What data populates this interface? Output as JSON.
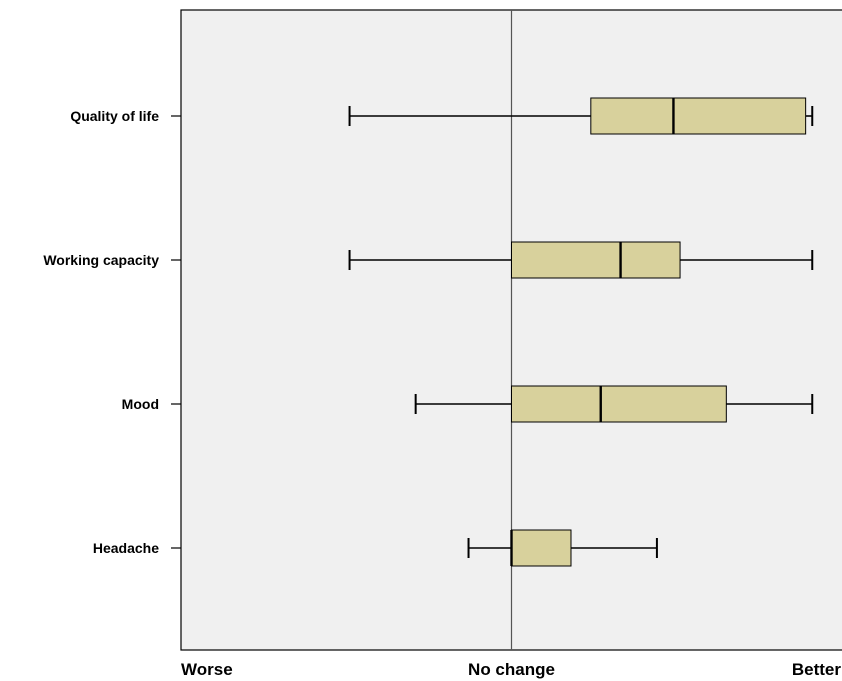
{
  "chart_data": {
    "type": "boxplot",
    "orientation": "horizontal",
    "categories": [
      "Quality of life",
      "Working capacity",
      "Mood",
      "Headache"
    ],
    "x_tick_labels": [
      "Worse",
      "No change",
      "Better"
    ],
    "xlim": [
      -1,
      1
    ],
    "reference_line": 0,
    "grid": false,
    "box_color": "#d8d19c",
    "background_color": "#f0f0f0",
    "boxes": [
      {
        "category": "Quality of life",
        "whisker_low": -0.49,
        "q1": 0.24,
        "median": 0.49,
        "q3": 0.89,
        "whisker_high": 0.91
      },
      {
        "category": "Working capacity",
        "whisker_low": -0.49,
        "q1": 0.0,
        "median": 0.33,
        "q3": 0.51,
        "whisker_high": 0.91
      },
      {
        "category": "Mood",
        "whisker_low": -0.29,
        "q1": 0.0,
        "median": 0.27,
        "q3": 0.65,
        "whisker_high": 0.91
      },
      {
        "category": "Headache",
        "whisker_low": -0.13,
        "q1": 0.0,
        "median": 0.0,
        "q3": 0.18,
        "whisker_high": 0.44
      }
    ]
  }
}
